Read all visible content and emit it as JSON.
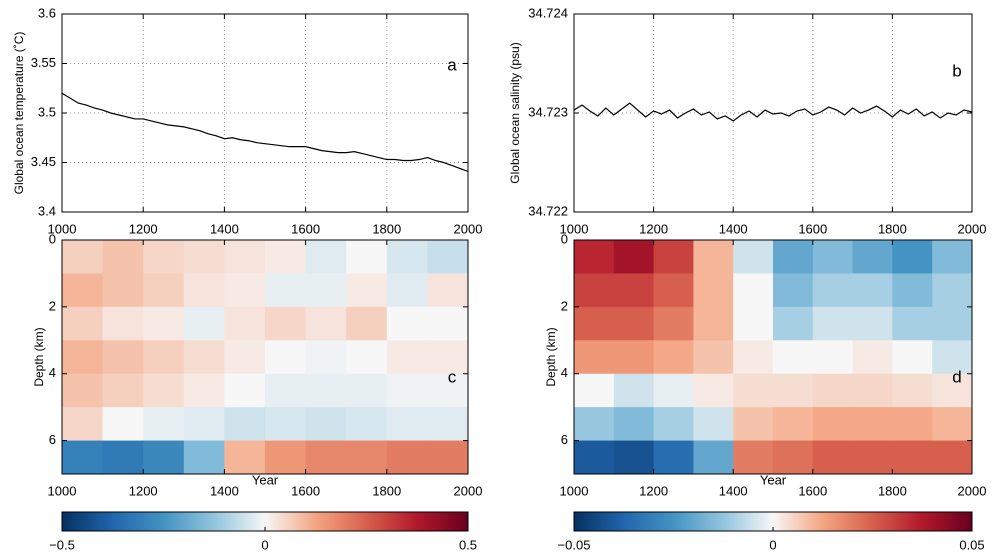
{
  "chart_data": [
    {
      "type": "line",
      "annotation": "a",
      "ylabel": "Global ocean temperature (˚C)",
      "color": "#000000",
      "grid": true,
      "xlim": [
        1000,
        2000
      ],
      "xticks": [
        1000,
        1200,
        1400,
        1600,
        1800,
        2000
      ],
      "ylim": [
        3.4,
        3.6
      ],
      "yticks": [
        3.4,
        3.45,
        3.5,
        3.55,
        3.6
      ],
      "x": [
        1000,
        1020,
        1040,
        1060,
        1080,
        1100,
        1120,
        1140,
        1160,
        1180,
        1200,
        1220,
        1240,
        1260,
        1280,
        1300,
        1320,
        1340,
        1360,
        1380,
        1400,
        1420,
        1440,
        1460,
        1480,
        1500,
        1520,
        1540,
        1560,
        1580,
        1600,
        1620,
        1640,
        1660,
        1680,
        1700,
        1720,
        1740,
        1760,
        1780,
        1800,
        1820,
        1840,
        1860,
        1880,
        1900,
        1920,
        1940,
        1960,
        1980,
        2000
      ],
      "values": [
        3.52,
        3.515,
        3.51,
        3.508,
        3.505,
        3.503,
        3.5,
        3.498,
        3.496,
        3.494,
        3.494,
        3.492,
        3.49,
        3.488,
        3.487,
        3.486,
        3.484,
        3.482,
        3.479,
        3.477,
        3.474,
        3.475,
        3.473,
        3.472,
        3.47,
        3.469,
        3.468,
        3.467,
        3.466,
        3.466,
        3.466,
        3.464,
        3.462,
        3.461,
        3.46,
        3.46,
        3.461,
        3.459,
        3.457,
        3.455,
        3.453,
        3.453,
        3.452,
        3.452,
        3.453,
        3.455,
        3.452,
        3.45,
        3.447,
        3.444,
        3.441
      ]
    },
    {
      "type": "line",
      "annotation": "b",
      "ylabel": "Global ocean salinity (psu)",
      "color": "#000000",
      "grid": true,
      "xlim": [
        1000,
        2000
      ],
      "xticks": [
        1000,
        1200,
        1400,
        1600,
        1800,
        2000
      ],
      "ylim": [
        34.722,
        34.724
      ],
      "yticks": [
        34.722,
        34.723,
        34.724
      ],
      "x": [
        1000,
        1020,
        1040,
        1060,
        1080,
        1100,
        1120,
        1140,
        1160,
        1180,
        1200,
        1220,
        1240,
        1260,
        1280,
        1300,
        1320,
        1340,
        1360,
        1380,
        1400,
        1420,
        1440,
        1460,
        1480,
        1500,
        1520,
        1540,
        1560,
        1580,
        1600,
        1620,
        1640,
        1660,
        1680,
        1700,
        1720,
        1740,
        1760,
        1780,
        1800,
        1820,
        1840,
        1860,
        1880,
        1900,
        1920,
        1940,
        1960,
        1980,
        2000
      ],
      "values": [
        34.72303,
        34.72308,
        34.72302,
        34.72297,
        34.72305,
        34.72298,
        34.72304,
        34.7231,
        34.72303,
        34.72296,
        34.72302,
        34.72299,
        34.72303,
        34.72295,
        34.723,
        34.72304,
        34.72298,
        34.72301,
        34.72294,
        34.72297,
        34.72292,
        34.72298,
        34.72302,
        34.72296,
        34.72303,
        34.72299,
        34.723,
        34.72297,
        34.72302,
        34.72304,
        34.72298,
        34.72301,
        34.72306,
        34.72303,
        34.72298,
        34.72305,
        34.723,
        34.72303,
        34.72307,
        34.72302,
        34.72296,
        34.72303,
        34.72299,
        34.72304,
        34.72297,
        34.72301,
        34.72295,
        34.723,
        34.72298,
        34.72303,
        34.72301
      ]
    },
    {
      "type": "heatmap",
      "annotation": "c",
      "ylabel": "Depth (km)",
      "xlabel": "Year",
      "y_inverted": true,
      "xlim": [
        1000,
        2000
      ],
      "xticks": [
        1000,
        1200,
        1400,
        1600,
        1800,
        2000
      ],
      "ylim": [
        0,
        7
      ],
      "yticks": [
        0,
        2,
        4,
        6
      ],
      "x": [
        1050,
        1150,
        1250,
        1350,
        1450,
        1550,
        1650,
        1750,
        1850,
        1950
      ],
      "y": [
        0.5,
        1.5,
        2.5,
        3.5,
        4.5,
        5.5,
        6.5
      ],
      "values": [
        [
          0.06,
          0.08,
          0.05,
          0.04,
          0.03,
          0.02,
          -0.03,
          0.0,
          -0.04,
          -0.06
        ],
        [
          0.1,
          0.08,
          0.06,
          0.03,
          0.02,
          -0.02,
          -0.02,
          0.02,
          -0.03,
          0.03
        ],
        [
          0.06,
          0.03,
          0.02,
          -0.02,
          0.03,
          0.05,
          0.03,
          0.06,
          0.0,
          0.0
        ],
        [
          0.1,
          0.08,
          0.06,
          0.04,
          0.02,
          0.0,
          -0.01,
          0.0,
          0.02,
          0.02
        ],
        [
          0.08,
          0.06,
          0.04,
          0.02,
          0.0,
          -0.02,
          -0.02,
          -0.02,
          -0.01,
          -0.01
        ],
        [
          0.05,
          0.0,
          -0.02,
          -0.03,
          -0.05,
          -0.04,
          -0.05,
          -0.04,
          -0.03,
          -0.03
        ],
        [
          -0.3,
          -0.32,
          -0.28,
          -0.15,
          0.1,
          0.15,
          0.18,
          0.18,
          0.2,
          0.2
        ]
      ],
      "clim": [
        -0.5,
        0.5
      ],
      "cticks": [
        {
          "value": -0.5,
          "label": "−0.5"
        },
        0,
        0.5
      ],
      "colormap": [
        "#053061",
        "#2166ac",
        "#4393c3",
        "#92c5de",
        "#f7f7f7",
        "#f4a582",
        "#d6604d",
        "#b2182b",
        "#67001f"
      ]
    },
    {
      "type": "heatmap",
      "annotation": "d",
      "ylabel": "Depth (km)",
      "xlabel": "Year",
      "y_inverted": true,
      "xlim": [
        1000,
        2000
      ],
      "xticks": [
        1000,
        1200,
        1400,
        1600,
        1800,
        2000
      ],
      "ylim": [
        0,
        7
      ],
      "yticks": [
        0,
        2,
        4,
        6
      ],
      "x": [
        1050,
        1150,
        1250,
        1350,
        1450,
        1550,
        1650,
        1750,
        1850,
        1950
      ],
      "y": [
        0.5,
        1.5,
        2.5,
        3.5,
        4.5,
        5.5,
        6.5
      ],
      "values": [
        [
          0.035,
          0.04,
          0.03,
          0.01,
          -0.005,
          -0.02,
          -0.015,
          -0.02,
          -0.025,
          -0.015
        ],
        [
          0.03,
          0.03,
          0.025,
          0.01,
          0.0,
          -0.015,
          -0.01,
          -0.01,
          -0.015,
          -0.01
        ],
        [
          0.025,
          0.025,
          0.02,
          0.01,
          0.0,
          -0.01,
          -0.005,
          -0.005,
          -0.01,
          -0.01
        ],
        [
          0.015,
          0.015,
          0.012,
          0.008,
          0.002,
          0.0,
          0.0,
          0.002,
          0.0,
          -0.005
        ],
        [
          0.0,
          -0.005,
          -0.002,
          0.002,
          0.004,
          0.004,
          0.005,
          0.005,
          0.004,
          0.003
        ],
        [
          -0.012,
          -0.015,
          -0.01,
          -0.005,
          0.008,
          0.01,
          0.012,
          0.012,
          0.012,
          0.01
        ],
        [
          -0.04,
          -0.042,
          -0.035,
          -0.02,
          0.02,
          0.022,
          0.025,
          0.025,
          0.025,
          0.025
        ]
      ],
      "clim": [
        -0.05,
        0.05
      ],
      "cticks": [
        {
          "value": -0.05,
          "label": "−0.05"
        },
        0,
        0.05
      ],
      "colormap": [
        "#053061",
        "#2166ac",
        "#4393c3",
        "#92c5de",
        "#f7f7f7",
        "#f4a582",
        "#d6604d",
        "#b2182b",
        "#67001f"
      ]
    }
  ]
}
